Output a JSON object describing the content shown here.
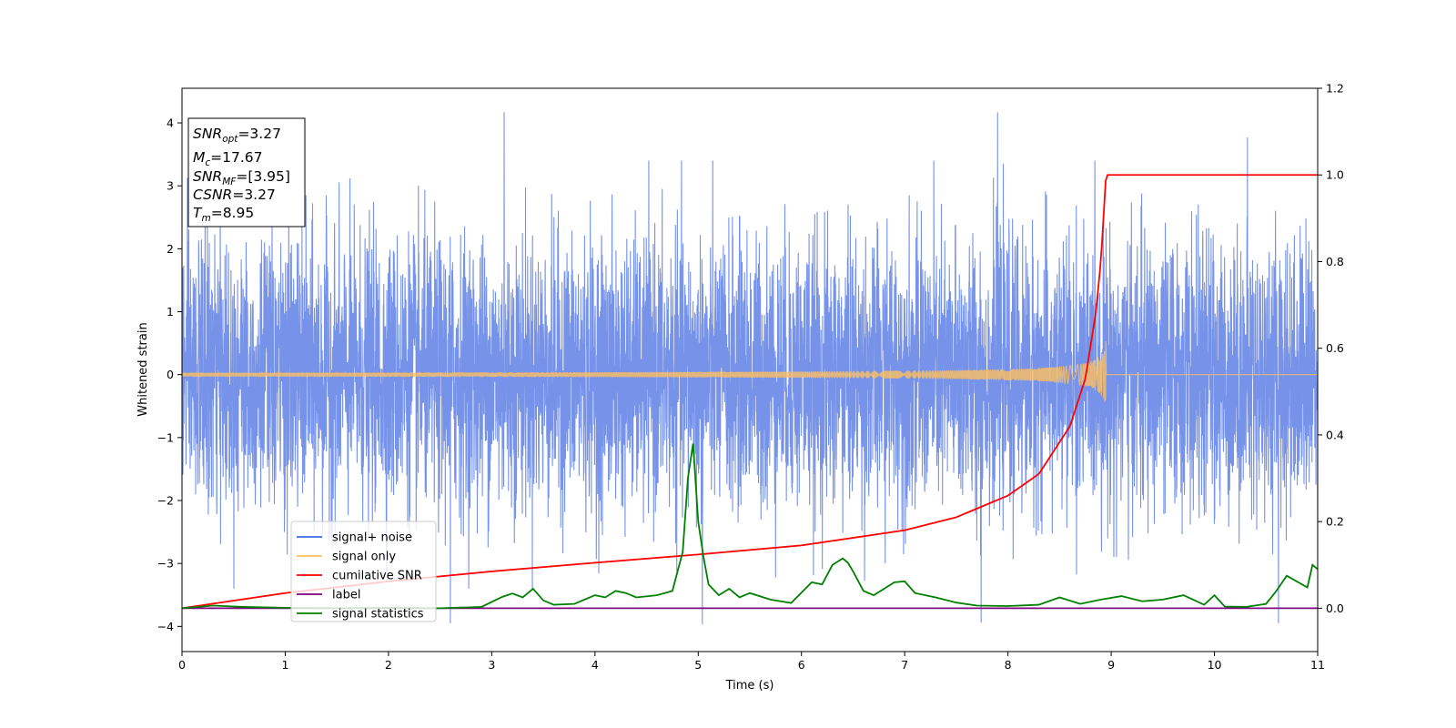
{
  "chart_data": {
    "type": "line",
    "title": "",
    "xlabel": "Time (s)",
    "ylabel": "Whitened strain",
    "xlim": [
      0,
      11
    ],
    "ylim": [
      -4.4,
      4.55
    ],
    "y2lim": [
      -0.1,
      1.2
    ],
    "x_ticks": [
      "0",
      "1",
      "2",
      "3",
      "4",
      "5",
      "6",
      "7",
      "8",
      "9",
      "10",
      "11"
    ],
    "y_ticks": [
      "4",
      "3",
      "2",
      "1",
      "0",
      "−1",
      "−2",
      "−3",
      "−4"
    ],
    "y2_ticks": [
      "1.2",
      "1.0",
      "0.8",
      "0.6",
      "0.4",
      "0.2",
      "0.0"
    ],
    "grid": false,
    "legend_position": "lower-left",
    "legend": [
      {
        "label": "signal+ noise",
        "color": "#4169e1"
      },
      {
        "label": "signal only",
        "color": "#ffbf60"
      },
      {
        "label": "cumilative SNR",
        "color": "#ff0000"
      },
      {
        "label": "label",
        "color": "#800080"
      },
      {
        "label": "signal statistics",
        "color": "#008000"
      }
    ],
    "annotation": {
      "snr_opt_main": "SNR",
      "snr_opt_sub": "opt",
      "snr_opt_val": "=3.27",
      "mc_main": "M",
      "mc_sub": "c",
      "mc_val": "=17.67",
      "snr_mf_main": "SNR",
      "snr_mf_sub": "MF",
      "snr_mf_val": "=[3.95]",
      "csnr_main": "CSNR",
      "csnr_val": "=3.27",
      "tm_main": "T",
      "tm_sub": "m",
      "tm_val": "=8.95"
    },
    "series": [
      {
        "name": "signal+ noise",
        "axis": "left",
        "color": "#4169e1",
        "description_values": {
          "duration": 11,
          "noise_std": 1.05,
          "max_abs": 4.17,
          "envelope_extremes": [
            [
              3.12,
              4.17
            ],
            [
              7.9,
              4.17
            ],
            [
              10.32,
              3.77
            ],
            [
              2.6,
              -3.95
            ],
            [
              5.04,
              -3.97
            ],
            [
              7.74,
              -3.94
            ],
            [
              10.62,
              -3.95
            ]
          ]
        }
      },
      {
        "name": "signal only",
        "axis": "left",
        "color": "#ffbf60",
        "chirp_end": 8.95,
        "chirp_peak_amplitude": 0.62
      },
      {
        "name": "cumilative SNR",
        "axis": "right",
        "color": "#ff0000",
        "x": [
          0,
          1,
          2,
          3,
          4,
          5,
          6,
          7,
          7.5,
          8,
          8.3,
          8.6,
          8.75,
          8.85,
          8.9,
          8.95,
          11
        ],
        "y": [
          0.0,
          0.035,
          0.062,
          0.085,
          0.105,
          0.124,
          0.145,
          0.18,
          0.21,
          0.26,
          0.31,
          0.42,
          0.53,
          0.68,
          0.8,
          1.0,
          1.0
        ]
      },
      {
        "name": "label",
        "axis": "right",
        "color": "#800080",
        "x": [
          0,
          11
        ],
        "y": [
          0.0,
          0.0
        ]
      },
      {
        "name": "signal statistics",
        "axis": "right",
        "color": "#008000",
        "x": [
          0,
          0.3,
          0.6,
          1.0,
          1.5,
          2.0,
          2.5,
          2.9,
          3.1,
          3.2,
          3.3,
          3.4,
          3.5,
          3.6,
          3.8,
          4.0,
          4.1,
          4.2,
          4.3,
          4.4,
          4.6,
          4.75,
          4.85,
          4.9,
          4.95,
          5.0,
          5.05,
          5.1,
          5.2,
          5.3,
          5.4,
          5.5,
          5.7,
          5.9,
          6.1,
          6.2,
          6.3,
          6.4,
          6.45,
          6.5,
          6.6,
          6.7,
          6.9,
          7.0,
          7.1,
          7.3,
          7.5,
          7.7,
          8.0,
          8.3,
          8.5,
          8.7,
          8.9,
          9.1,
          9.3,
          9.5,
          9.7,
          9.9,
          10.0,
          10.1,
          10.3,
          10.5,
          10.6,
          10.7,
          10.9,
          10.95,
          11.0
        ],
        "y": [
          0.0,
          0.006,
          0.003,
          0.001,
          0.0,
          0.001,
          0.0,
          0.003,
          0.026,
          0.034,
          0.025,
          0.045,
          0.018,
          0.008,
          0.01,
          0.03,
          0.025,
          0.04,
          0.035,
          0.025,
          0.03,
          0.04,
          0.13,
          0.3,
          0.38,
          0.2,
          0.12,
          0.055,
          0.03,
          0.045,
          0.025,
          0.035,
          0.02,
          0.012,
          0.06,
          0.055,
          0.1,
          0.115,
          0.105,
          0.085,
          0.04,
          0.03,
          0.06,
          0.062,
          0.035,
          0.025,
          0.013,
          0.006,
          0.005,
          0.008,
          0.025,
          0.01,
          0.02,
          0.028,
          0.016,
          0.02,
          0.03,
          0.008,
          0.03,
          0.004,
          0.003,
          0.01,
          0.04,
          0.075,
          0.048,
          0.1,
          0.09
        ]
      }
    ]
  }
}
